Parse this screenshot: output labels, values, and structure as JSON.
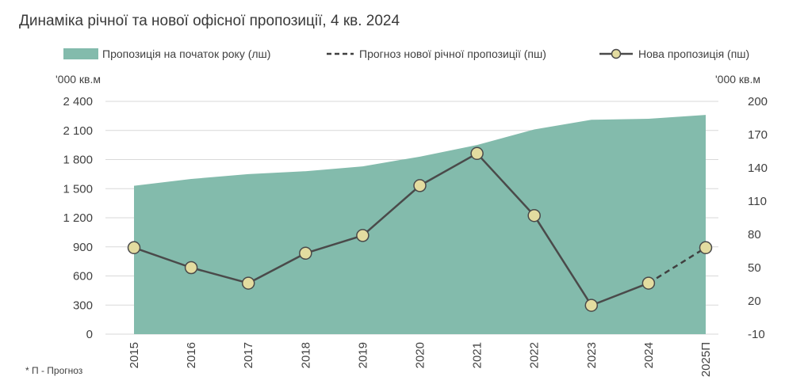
{
  "chart_data": {
    "type": "area+line",
    "title": "Динаміка річної та  нової офісної пропозиції, 4 кв. 2024",
    "categories": [
      "2015",
      "2016",
      "2017",
      "2018",
      "2019",
      "2020",
      "2021",
      "2022",
      "2023",
      "2024",
      "2025П"
    ],
    "left_axis": {
      "unit": "'000 кв.м",
      "ticks": [
        "0",
        "300",
        "600",
        "900",
        "1 200",
        "1 500",
        "1 800",
        "2 100",
        "2 400"
      ],
      "range": [
        0,
        2400
      ]
    },
    "right_axis": {
      "unit": "'000 кв.м",
      "ticks": [
        "-10",
        "20",
        "50",
        "80",
        "110",
        "140",
        "170",
        "200"
      ],
      "range": [
        -10,
        200
      ]
    },
    "series": [
      {
        "name": "Пропозиція на початок року (лш)",
        "type": "area",
        "axis": "left",
        "color": "#83bbac",
        "values": [
          1530,
          1600,
          1650,
          1680,
          1730,
          1830,
          1950,
          2110,
          2210,
          2220,
          2260
        ]
      },
      {
        "name": "Прогноз нової річної пропозиції (пш)",
        "type": "line-dashed",
        "axis": "right",
        "color": "#404040",
        "values": [
          null,
          null,
          null,
          null,
          null,
          null,
          null,
          null,
          null,
          36,
          68
        ]
      },
      {
        "name": "Нова пропозиція (пш)",
        "type": "line-markers",
        "axis": "right",
        "color": "#4a4a4a",
        "marker_color": "#e3dca0",
        "values": [
          68,
          50,
          36,
          63,
          79,
          124,
          153,
          97,
          16,
          36,
          null
        ]
      }
    ],
    "footnote": "* П - Прогноз"
  }
}
